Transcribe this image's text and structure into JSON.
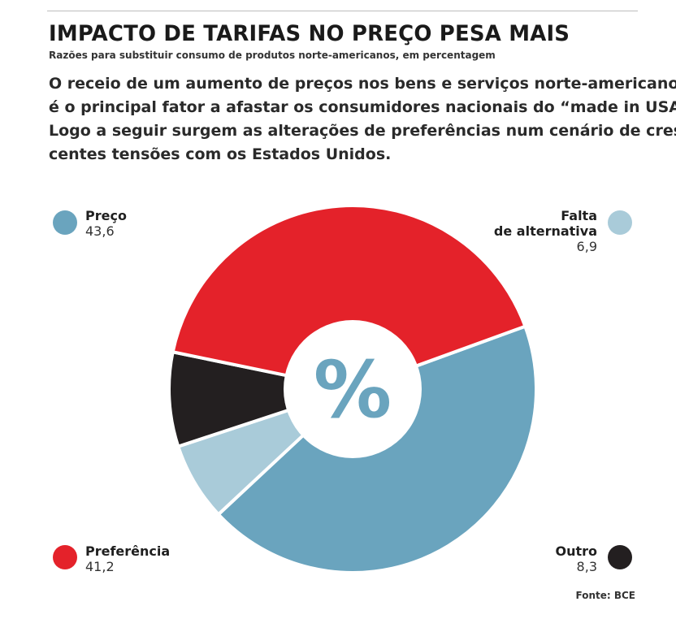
{
  "header": {
    "title": "IMPACTO DE TARIFAS NO PREÇO PESA MAIS",
    "subtitle": "Razões para substituir consumo de produtos norte-americanos, em percentagem",
    "lead": [
      "O receio de um aumento de preços nos bens e serviços norte-americanos",
      "é o principal fator a afastar os consumidores nacionais do “made in USA”.",
      "Logo a seguir surgem as alterações de preferências num cenário de cres-",
      "centes tensões com os Estados Unidos."
    ]
  },
  "chart_data": {
    "type": "pie",
    "donut": true,
    "center_label": "%",
    "categories": [
      "Preço",
      "Falta de alternativa",
      "Outro",
      "Preferência"
    ],
    "values": [
      43.6,
      6.9,
      8.3,
      41.2
    ],
    "value_labels": [
      "43,6",
      "6,9",
      "8,3",
      "41,2"
    ],
    "label_lines": [
      [
        "Preço"
      ],
      [
        "Falta",
        "de alternativa"
      ],
      [
        "Outro"
      ],
      [
        "Preferência"
      ]
    ],
    "colors": [
      "#6aa4be",
      "#a9cbd9",
      "#231f20",
      "#e4222a"
    ]
  },
  "footer": {
    "source": "Fonte: BCE"
  }
}
